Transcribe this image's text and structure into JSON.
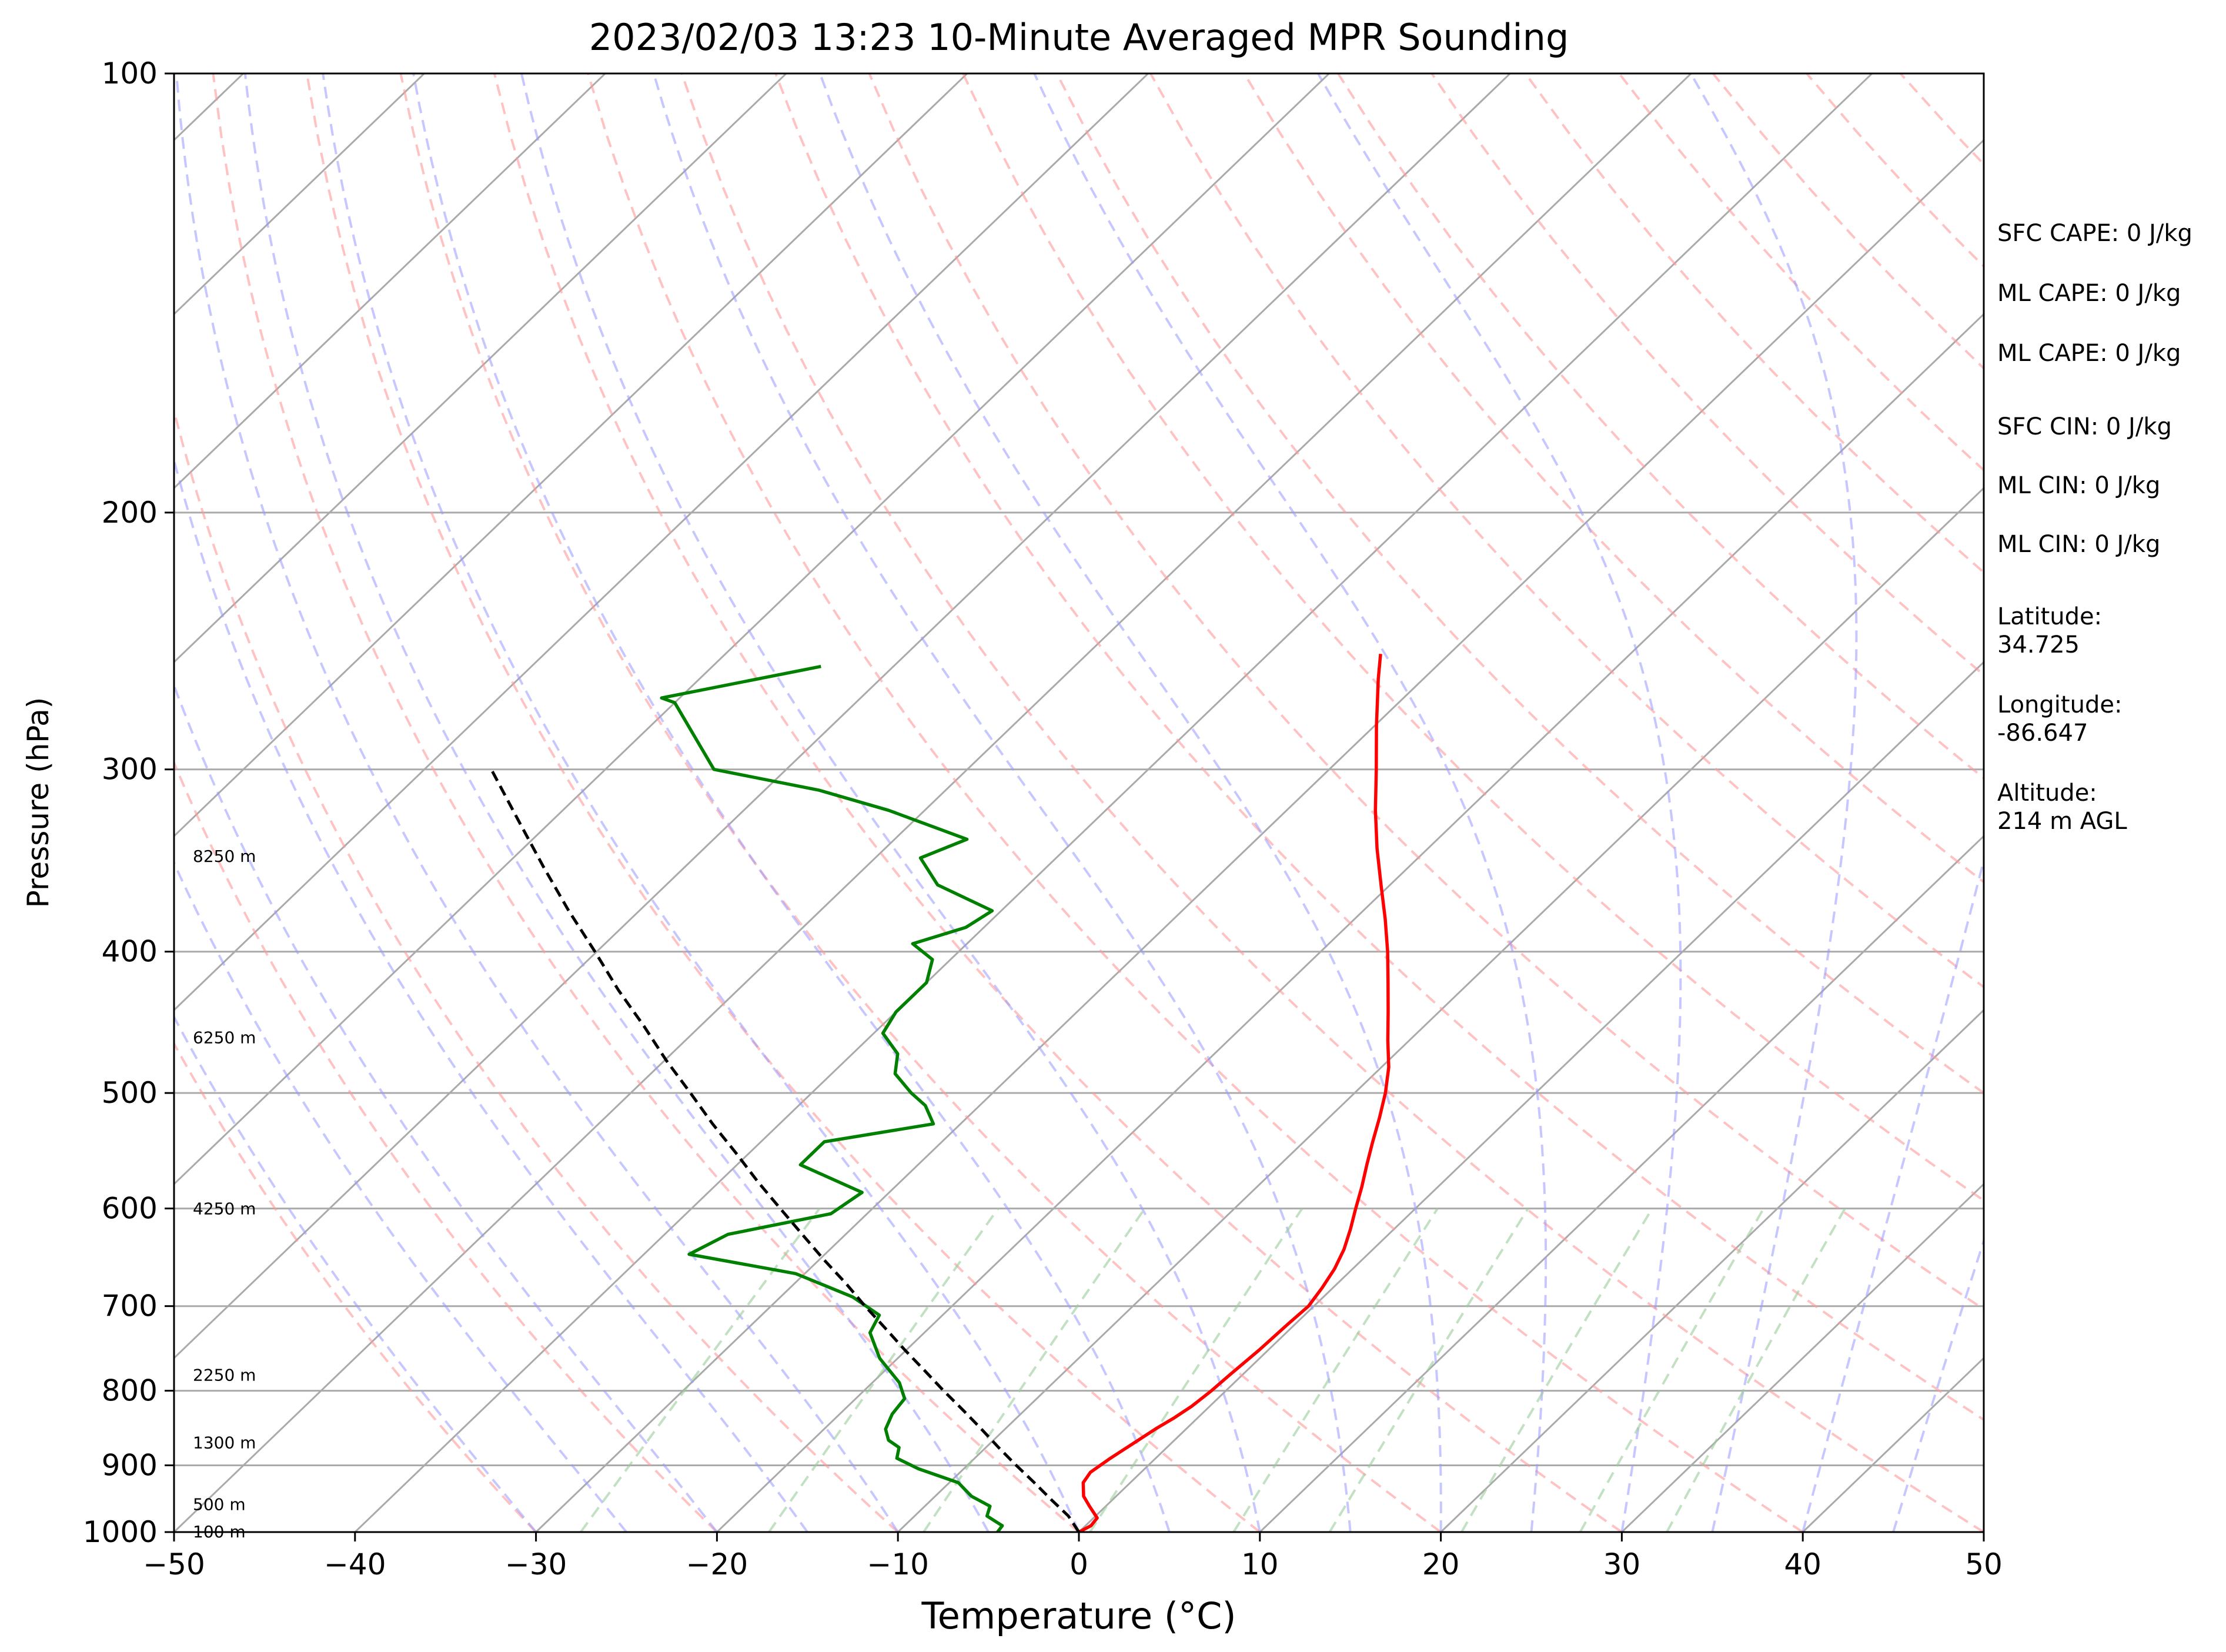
{
  "chart_data": {
    "type": "line",
    "title": "2023/02/03 13:23 10-Minute Averaged MPR Sounding",
    "xlabel": "Temperature (°C)",
    "ylabel": "Pressure (hPa)",
    "xlim": [
      -50,
      50
    ],
    "ylim": [
      1000,
      100
    ],
    "yscale": "log",
    "skew": "skew-T",
    "grid": true,
    "xticks": [
      -50,
      -40,
      -30,
      -20,
      -10,
      0,
      10,
      20,
      30,
      40,
      50
    ],
    "xtick_labels": [
      "−50",
      "−40",
      "−30",
      "−20",
      "−10",
      "0",
      "10",
      "20",
      "30",
      "40",
      "50"
    ],
    "yticks": [
      100,
      200,
      300,
      400,
      500,
      600,
      700,
      800,
      900,
      1000
    ],
    "ytick_labels": [
      "100",
      "200",
      "300",
      "400",
      "500",
      "600",
      "700",
      "800",
      "900",
      "1000"
    ],
    "series": [
      {
        "kind": "temperature",
        "color": "#ff0000",
        "points": [
          [
            1000,
            0
          ],
          [
            990,
            0.3
          ],
          [
            978,
            0.2
          ],
          [
            960,
            -0.9
          ],
          [
            945,
            -1.8
          ],
          [
            925,
            -2.6
          ],
          [
            910,
            -2.8
          ],
          [
            890,
            -2.5
          ],
          [
            870,
            -2.1
          ],
          [
            850,
            -1.7
          ],
          [
            835,
            -1.3
          ],
          [
            820,
            -1.0
          ],
          [
            800,
            -0.8
          ],
          [
            780,
            -0.7
          ],
          [
            750,
            -0.5
          ],
          [
            720,
            -0.4
          ],
          [
            700,
            -0.3
          ],
          [
            680,
            -0.6
          ],
          [
            660,
            -1.0
          ],
          [
            640,
            -1.6
          ],
          [
            620,
            -2.4
          ],
          [
            600,
            -3.3
          ],
          [
            580,
            -4.2
          ],
          [
            560,
            -5.2
          ],
          [
            540,
            -6.2
          ],
          [
            520,
            -7.2
          ],
          [
            500,
            -8.3
          ],
          [
            480,
            -9.6
          ],
          [
            460,
            -11.2
          ],
          [
            440,
            -12.8
          ],
          [
            420,
            -14.5
          ],
          [
            400,
            -16.3
          ],
          [
            380,
            -18.3
          ],
          [
            360,
            -20.5
          ],
          [
            340,
            -22.8
          ],
          [
            320,
            -25.1
          ],
          [
            300,
            -27.4
          ],
          [
            280,
            -29.9
          ],
          [
            260,
            -32.5
          ],
          [
            250,
            -33.8
          ]
        ]
      },
      {
        "kind": "dewpoint",
        "color": "#008000",
        "points": [
          [
            1000,
            -4.5
          ],
          [
            990,
            -4.6
          ],
          [
            975,
            -6.0
          ],
          [
            960,
            -6.4
          ],
          [
            945,
            -8.0
          ],
          [
            925,
            -9.5
          ],
          [
            905,
            -12.5
          ],
          [
            890,
            -14.3
          ],
          [
            875,
            -14.8
          ],
          [
            865,
            -15.8
          ],
          [
            850,
            -16.6
          ],
          [
            830,
            -17.1
          ],
          [
            810,
            -17.3
          ],
          [
            790,
            -18.5
          ],
          [
            760,
            -21.0
          ],
          [
            730,
            -23.0
          ],
          [
            710,
            -23.5
          ],
          [
            690,
            -26.0
          ],
          [
            665,
            -30.5
          ],
          [
            645,
            -37.5
          ],
          [
            625,
            -36.5
          ],
          [
            605,
            -32.0
          ],
          [
            585,
            -31.5
          ],
          [
            560,
            -36.5
          ],
          [
            540,
            -36.5
          ],
          [
            525,
            -31.5
          ],
          [
            510,
            -33.0
          ],
          [
            500,
            -34.5
          ],
          [
            485,
            -36.5
          ],
          [
            470,
            -37.5
          ],
          [
            455,
            -39.5
          ],
          [
            440,
            -40.0
          ],
          [
            420,
            -40.0
          ],
          [
            405,
            -41.0
          ],
          [
            395,
            -43.0
          ],
          [
            385,
            -41.0
          ],
          [
            375,
            -40.5
          ],
          [
            360,
            -45.0
          ],
          [
            345,
            -47.5
          ],
          [
            335,
            -46.0
          ],
          [
            320,
            -52.0
          ],
          [
            310,
            -57.0
          ],
          [
            300,
            -64.0
          ],
          [
            270,
            -70.0
          ],
          [
            268,
            -71.0
          ],
          [
            255,
            -64.0
          ]
        ]
      },
      {
        "kind": "parcel",
        "color": "#000000",
        "style": "dashed",
        "points": [
          [
            1000,
            0.0
          ],
          [
            975,
            -1.5
          ],
          [
            950,
            -3.4
          ],
          [
            925,
            -5.3
          ],
          [
            900,
            -7.3
          ],
          [
            875,
            -9.3
          ],
          [
            850,
            -11.3
          ],
          [
            825,
            -13.4
          ],
          [
            800,
            -15.6
          ],
          [
            775,
            -17.8
          ],
          [
            750,
            -20.1
          ],
          [
            725,
            -22.4
          ],
          [
            700,
            -24.8
          ],
          [
            675,
            -27.2
          ],
          [
            650,
            -29.8
          ],
          [
            625,
            -32.4
          ],
          [
            600,
            -35.1
          ],
          [
            575,
            -37.9
          ],
          [
            550,
            -40.7
          ],
          [
            525,
            -43.7
          ],
          [
            500,
            -46.7
          ],
          [
            475,
            -49.9
          ],
          [
            450,
            -53.1
          ],
          [
            425,
            -56.6
          ],
          [
            400,
            -60.1
          ],
          [
            375,
            -63.9
          ],
          [
            350,
            -67.8
          ],
          [
            325,
            -71.9
          ],
          [
            300,
            -76.3
          ]
        ]
      }
    ],
    "height_labels": [
      {
        "p": 999,
        "text": "100 m"
      },
      {
        "p": 957,
        "text": "500 m"
      },
      {
        "p": 868,
        "text": "1300 m"
      },
      {
        "p": 780,
        "text": "2250 m"
      },
      {
        "p": 600,
        "text": "4250 m"
      },
      {
        "p": 458,
        "text": "6250 m"
      },
      {
        "p": 344,
        "text": "8250 m"
      }
    ],
    "background_lines": {
      "isotherm_color": "#aaaaaa",
      "dry_adiabat_color": "#ff9999",
      "moist_adiabat_color": "#9999ff",
      "mixing_ratio_color": "#99cc99"
    },
    "annotations": [
      "SFC CAPE: 0 J/kg",
      "ML CAPE: 0 J/kg",
      "ML CAPE: 0 J/kg",
      "SFC CIN: 0 J/kg",
      "ML CIN: 0 J/kg",
      "ML CIN: 0 J/kg",
      "Latitude:\n34.725",
      "Longitude:\n-86.647",
      "Altitude:\n214 m AGL"
    ]
  }
}
